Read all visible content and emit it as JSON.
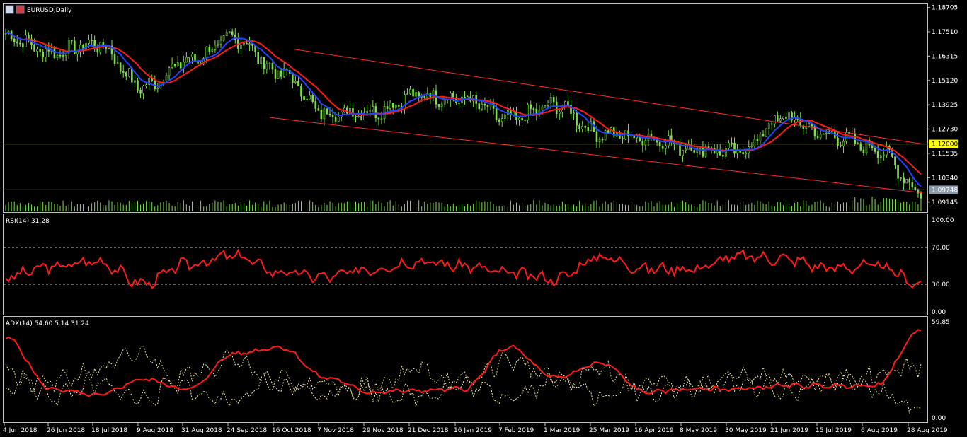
{
  "window": {
    "title": "EURUSD,Daily"
  },
  "colors": {
    "background": "#000000",
    "frame": "#c0c0c0",
    "candles": "#7ee04a",
    "ma_fast": "#2244ff",
    "ma_slow": "#ff1a1a",
    "channel": "#ff2a2a",
    "level_line": "#e6e600",
    "price_line": "#9aa0a6",
    "rsi_line": "#ff1a1a",
    "adx_line": "#ff1a1a",
    "di_lines": "#f0e6a0",
    "level_badge_bg": "#ffff00",
    "price_badge_bg": "#8a9aa8"
  },
  "chart_data": [
    {
      "type": "candlestick",
      "title": "EURUSD,Daily",
      "ylim": [
        1.0865,
        1.189
      ],
      "price_ticks": [
        "1.18705",
        "1.17510",
        "1.16315",
        "1.15120",
        "1.13925",
        "1.12730",
        "1.11535",
        "1.10340",
        "1.09145"
      ],
      "horizontal_level": {
        "label": "1.12000",
        "value": 1.12
      },
      "current_price": {
        "label": "1.09748",
        "value": 1.09748
      },
      "channel_upper": {
        "from": [
          "16 Oct 2018",
          1.1665
        ],
        "to": [
          "28 Aug 2019",
          1.12
        ]
      },
      "channel_lower": {
        "from": [
          "16 Oct 2018",
          1.133
        ],
        "to": [
          "28 Aug 2019",
          1.096
        ]
      },
      "series": [
        {
          "name": "close",
          "x": [
            "4 Jun 2018",
            "26 Jun 2018",
            "18 Jul 2018",
            "9 Aug 2018",
            "31 Aug 2018",
            "24 Sep 2018",
            "16 Oct 2018",
            "7 Nov 2018",
            "29 Nov 2018",
            "21 Dec 2018",
            "16 Jan 2019",
            "7 Feb 2019",
            "1 Mar 2019",
            "25 Mar 2019",
            "16 Apr 2019",
            "8 May 2019",
            "30 May 2019",
            "21 Jun 2019",
            "15 Jul 2019",
            "6 Aug 2019",
            "28 Aug 2019"
          ],
          "values": [
            1.173,
            1.165,
            1.169,
            1.148,
            1.161,
            1.172,
            1.155,
            1.135,
            1.136,
            1.144,
            1.142,
            1.132,
            1.139,
            1.125,
            1.123,
            1.118,
            1.116,
            1.133,
            1.124,
            1.118,
            1.097
          ]
        }
      ],
      "volume_shown": true
    },
    {
      "type": "line",
      "title": "RSI(14) 31.28",
      "ylim": [
        0,
        100
      ],
      "y_ticks": [
        "100.00",
        "70.00",
        "30.00",
        "0.00"
      ],
      "levels": [
        70,
        30
      ],
      "series": [
        {
          "name": "RSI(14)",
          "x": [
            "4 Jun 2018",
            "26 Jun 2018",
            "18 Jul 2018",
            "9 Aug 2018",
            "31 Aug 2018",
            "24 Sep 2018",
            "16 Oct 2018",
            "7 Nov 2018",
            "29 Nov 2018",
            "21 Dec 2018",
            "16 Jan 2019",
            "7 Feb 2019",
            "1 Mar 2019",
            "25 Mar 2019",
            "16 Apr 2019",
            "8 May 2019",
            "30 May 2019",
            "21 Jun 2019",
            "15 Jul 2019",
            "6 Aug 2019",
            "28 Aug 2019"
          ],
          "values": [
            38,
            49,
            55,
            31,
            52,
            61,
            43,
            38,
            47,
            55,
            50,
            42,
            36,
            60,
            47,
            47,
            60,
            58,
            48,
            50,
            31
          ]
        }
      ]
    },
    {
      "type": "line",
      "title": "ADX(14) 54.60 5.14 31.24",
      "ylim": [
        0,
        59.85
      ],
      "y_ticks": [
        "59.85",
        "0.00"
      ],
      "series": [
        {
          "name": "ADX(14)",
          "x": [
            "4 Jun 2018",
            "26 Jun 2018",
            "18 Jul 2018",
            "9 Aug 2018",
            "31 Aug 2018",
            "24 Sep 2018",
            "16 Oct 2018",
            "7 Nov 2018",
            "29 Nov 2018",
            "21 Dec 2018",
            "16 Jan 2019",
            "7 Feb 2019",
            "1 Mar 2019",
            "25 Mar 2019",
            "16 Apr 2019",
            "8 May 2019",
            "30 May 2019",
            "21 Jun 2019",
            "15 Jul 2019",
            "6 Aug 2019",
            "28 Aug 2019"
          ],
          "values": [
            50,
            18,
            14,
            24,
            18,
            40,
            44,
            25,
            16,
            17,
            18,
            44,
            25,
            34,
            16,
            18,
            18,
            20,
            20,
            20,
            54.6
          ]
        },
        {
          "name": "+DI",
          "x": [
            "4 Jun 2018",
            "26 Jun 2018",
            "18 Jul 2018",
            "9 Aug 2018",
            "31 Aug 2018",
            "24 Sep 2018",
            "16 Oct 2018",
            "7 Nov 2018",
            "29 Nov 2018",
            "21 Dec 2018",
            "16 Jan 2019",
            "7 Feb 2019",
            "1 Mar 2019",
            "25 Mar 2019",
            "16 Apr 2019",
            "8 May 2019",
            "30 May 2019",
            "21 Jun 2019",
            "15 Jul 2019",
            "6 Aug 2019",
            "28 Aug 2019"
          ],
          "values": [
            20,
            22,
            30,
            40,
            18,
            12,
            24,
            14,
            20,
            30,
            22,
            36,
            25,
            14,
            22,
            18,
            26,
            24,
            26,
            17,
            5.14
          ]
        },
        {
          "name": "-DI",
          "x": [
            "4 Jun 2018",
            "26 Jun 2018",
            "18 Jul 2018",
            "9 Aug 2018",
            "31 Aug 2018",
            "24 Sep 2018",
            "16 Oct 2018",
            "7 Nov 2018",
            "29 Nov 2018",
            "21 Dec 2018",
            "16 Jan 2019",
            "7 Feb 2019",
            "1 Mar 2019",
            "25 Mar 2019",
            "16 Apr 2019",
            "8 May 2019",
            "30 May 2019",
            "21 Jun 2019",
            "15 Jul 2019",
            "6 Aug 2019",
            "28 Aug 2019"
          ],
          "values": [
            30,
            14,
            20,
            12,
            28,
            36,
            18,
            22,
            16,
            14,
            20,
            14,
            22,
            30,
            16,
            20,
            22,
            16,
            22,
            26,
            31.24
          ]
        }
      ]
    }
  ],
  "x_axis": {
    "labels": [
      "4 Jun 2018",
      "26 Jun 2018",
      "18 Jul 2018",
      "9 Aug 2018",
      "31 Aug 2018",
      "24 Sep 2018",
      "16 Oct 2018",
      "7 Nov 2018",
      "29 Nov 2018",
      "21 Dec 2018",
      "16 Jan 2019",
      "7 Feb 2019",
      "1 Mar 2019",
      "25 Mar 2019",
      "16 Apr 2019",
      "8 May 2019",
      "30 May 2019",
      "21 Jun 2019",
      "15 Jul 2019",
      "6 Aug 2019",
      "28 Aug 2019"
    ]
  }
}
